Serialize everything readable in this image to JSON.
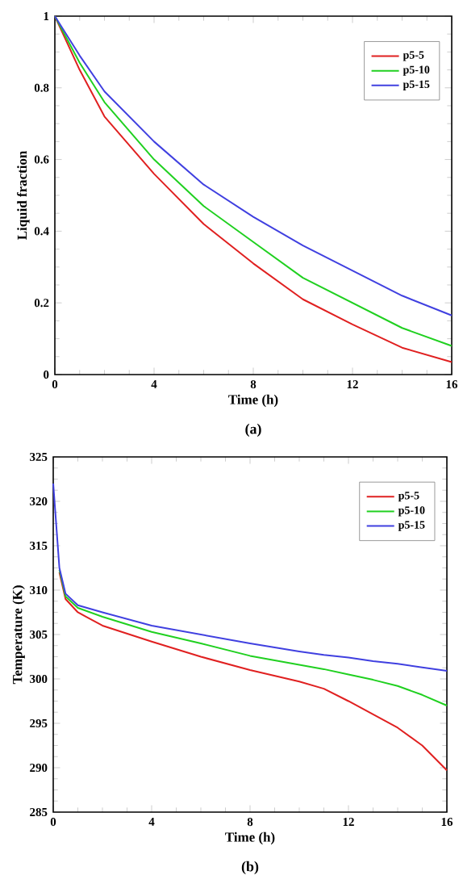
{
  "chart_data": [
    {
      "type": "line",
      "xlabel": "Time (h)",
      "ylabel": "Liquid fraction",
      "annotations": [
        "(a)"
      ],
      "xlim": [
        0,
        16
      ],
      "ylim": [
        0,
        1
      ],
      "xticks": [
        0,
        4,
        8,
        12,
        16
      ],
      "yticks": [
        0,
        0.2,
        0.4,
        0.6,
        0.8,
        1
      ],
      "legend": "top right",
      "marker": "none",
      "line_style": "solid",
      "x": [
        0,
        1,
        2,
        4,
        6,
        8,
        10,
        12,
        14,
        16
      ],
      "series": [
        {
          "name": "p5-5",
          "color": "#e02020",
          "values": [
            1,
            0.85,
            0.72,
            0.56,
            0.42,
            0.31,
            0.21,
            0.14,
            0.075,
            0.035
          ]
        },
        {
          "name": "p5-10",
          "color": "#20d020",
          "values": [
            1,
            0.87,
            0.76,
            0.6,
            0.47,
            0.37,
            0.27,
            0.2,
            0.13,
            0.08
          ]
        },
        {
          "name": "p5-15",
          "color": "#4040e0",
          "values": [
            1,
            0.89,
            0.79,
            0.65,
            0.53,
            0.44,
            0.36,
            0.29,
            0.22,
            0.165
          ]
        }
      ]
    },
    {
      "type": "line",
      "xlabel": "Time (h)",
      "ylabel": "Temperature (K)",
      "annotations": [
        "(b)"
      ],
      "xlim": [
        0,
        16
      ],
      "ylim": [
        285,
        325
      ],
      "xticks": [
        0,
        4,
        8,
        12,
        16
      ],
      "yticks": [
        285,
        290,
        295,
        300,
        305,
        310,
        315,
        320,
        325
      ],
      "legend": "top right",
      "marker": "none",
      "line_style": "solid",
      "x": [
        0,
        0.25,
        0.5,
        1,
        2,
        4,
        6,
        8,
        10,
        11,
        12,
        13,
        14,
        15,
        16
      ],
      "series": [
        {
          "name": "p5-5",
          "color": "#e02020",
          "values": [
            null,
            312,
            309,
            307.5,
            306,
            304.2,
            302.5,
            301,
            299.7,
            298.9,
            297.5,
            296,
            294.5,
            292.5,
            289.7
          ]
        },
        {
          "name": "p5-10",
          "color": "#20d020",
          "values": [
            null,
            312.3,
            309.3,
            308,
            307,
            305.3,
            304,
            302.6,
            301.6,
            301.1,
            300.5,
            299.9,
            299.2,
            298.2,
            297
          ]
        },
        {
          "name": "p5-15",
          "color": "#4040e0",
          "values": [
            322,
            312.5,
            309.6,
            308.3,
            307.5,
            306,
            305,
            304,
            303.1,
            302.7,
            302.4,
            302,
            301.7,
            301.3,
            300.9
          ]
        }
      ]
    }
  ]
}
